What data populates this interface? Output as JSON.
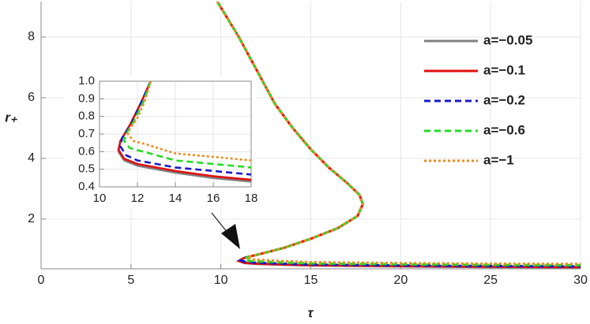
{
  "chart_data": [
    {
      "type": "line",
      "x_label": "τ",
      "y_label": "r₊",
      "xlim": [
        0,
        30
      ],
      "xticks": [
        0,
        5,
        10,
        15,
        20,
        25,
        30
      ],
      "ylim": [
        0.36,
        9.17
      ],
      "yticks": [
        2,
        4,
        6,
        8
      ],
      "grid": true,
      "legend": "upper right",
      "series": [
        {
          "name": "a=−0.05",
          "color": "#808080",
          "dash": "solid",
          "x": [
            9.8,
            11,
            12,
            13,
            14,
            15,
            16,
            17,
            17.7,
            17.9,
            17.6,
            16.5,
            15,
            13.5,
            12.2,
            11.3,
            11.0,
            11.3,
            12,
            15,
            20,
            25,
            30
          ],
          "values": [
            9.17,
            8.0,
            6.9,
            5.8,
            5.0,
            4.3,
            3.7,
            3.2,
            2.8,
            2.5,
            2.1,
            1.7,
            1.35,
            1.05,
            0.85,
            0.72,
            0.62,
            0.55,
            0.52,
            0.47,
            0.44,
            0.42,
            0.41
          ]
        },
        {
          "name": "a=−0.1",
          "color": "#e01010",
          "dash": "solid",
          "x": [
            9.8,
            11,
            12,
            13,
            14,
            15,
            16,
            17,
            17.7,
            17.9,
            17.6,
            16.5,
            15,
            13.5,
            12.2,
            11.3,
            11.0,
            11.3,
            12,
            15,
            20,
            25,
            30
          ],
          "values": [
            9.17,
            8.0,
            6.9,
            5.8,
            5.0,
            4.3,
            3.7,
            3.2,
            2.8,
            2.5,
            2.1,
            1.7,
            1.35,
            1.05,
            0.85,
            0.72,
            0.62,
            0.56,
            0.53,
            0.48,
            0.45,
            0.43,
            0.42
          ]
        },
        {
          "name": "a=−0.2",
          "color": "#1a1acc",
          "dash": "dashed",
          "x": [
            9.8,
            11,
            12,
            13,
            14,
            15,
            16,
            17,
            17.7,
            17.9,
            17.6,
            16.5,
            15,
            13.5,
            12.2,
            11.4,
            11.1,
            11.4,
            12,
            15,
            20,
            25,
            30
          ],
          "values": [
            9.17,
            8.0,
            6.9,
            5.8,
            5.0,
            4.3,
            3.7,
            3.2,
            2.8,
            2.5,
            2.1,
            1.7,
            1.35,
            1.05,
            0.85,
            0.73,
            0.64,
            0.58,
            0.56,
            0.5,
            0.47,
            0.45,
            0.44
          ]
        },
        {
          "name": "a=−0.6",
          "color": "#22dd22",
          "dash": "dashed",
          "x": [
            9.8,
            11,
            12,
            13,
            14,
            15,
            16,
            17,
            17.7,
            17.9,
            17.6,
            16.5,
            15,
            13.5,
            12.2,
            11.5,
            11.3,
            11.6,
            12.3,
            15,
            20,
            25,
            30
          ],
          "values": [
            9.17,
            8.0,
            6.9,
            5.8,
            5.0,
            4.3,
            3.7,
            3.2,
            2.8,
            2.5,
            2.1,
            1.7,
            1.35,
            1.05,
            0.85,
            0.75,
            0.68,
            0.62,
            0.6,
            0.54,
            0.51,
            0.49,
            0.48
          ]
        },
        {
          "name": "a=−1",
          "color": "#f08a1c",
          "dash": "dotted",
          "x": [
            9.8,
            11,
            12,
            13,
            14,
            15,
            16,
            17,
            17.7,
            17.9,
            17.6,
            16.5,
            15,
            13.5,
            12.2,
            11.7,
            11.5,
            11.8,
            12.5,
            15,
            20,
            25,
            30
          ],
          "values": [
            9.17,
            8.0,
            6.9,
            5.8,
            5.0,
            4.3,
            3.7,
            3.2,
            2.8,
            2.5,
            2.1,
            1.7,
            1.35,
            1.05,
            0.85,
            0.78,
            0.72,
            0.67,
            0.64,
            0.58,
            0.55,
            0.53,
            0.52
          ]
        }
      ]
    },
    {
      "type": "line",
      "xlim": [
        10,
        18
      ],
      "xticks": [
        10,
        12,
        14,
        16,
        18
      ],
      "ylim": [
        0.4,
        1.0
      ],
      "yticks": [
        0.4,
        0.5,
        0.6,
        0.7,
        0.8,
        0.9,
        {
          "value": 1.0,
          "label": "1.0"
        }
      ],
      "grid": true,
      "series": [
        {
          "color": "#808080",
          "dash": "solid",
          "x": [
            12.7,
            12.2,
            11.6,
            11.1,
            11.0,
            11.3,
            12,
            14,
            16,
            18
          ],
          "values": [
            1.0,
            0.88,
            0.75,
            0.66,
            0.6,
            0.55,
            0.52,
            0.48,
            0.45,
            0.43
          ]
        },
        {
          "color": "#e01010",
          "dash": "solid",
          "x": [
            12.7,
            12.2,
            11.6,
            11.1,
            11.0,
            11.3,
            12,
            14,
            16,
            18
          ],
          "values": [
            1.0,
            0.88,
            0.75,
            0.66,
            0.61,
            0.56,
            0.53,
            0.49,
            0.46,
            0.44
          ]
        },
        {
          "color": "#1a1acc",
          "dash": "dashed",
          "x": [
            12.7,
            12.2,
            11.7,
            11.2,
            11.1,
            11.4,
            12,
            14,
            16,
            18
          ],
          "values": [
            1.0,
            0.88,
            0.76,
            0.68,
            0.63,
            0.58,
            0.55,
            0.51,
            0.49,
            0.47
          ]
        },
        {
          "color": "#22dd22",
          "dash": "dashed",
          "x": [
            12.7,
            12.3,
            11.8,
            11.4,
            11.3,
            11.6,
            12.3,
            14,
            16,
            18
          ],
          "values": [
            1.0,
            0.88,
            0.77,
            0.7,
            0.66,
            0.62,
            0.6,
            0.55,
            0.53,
            0.51
          ]
        },
        {
          "color": "#f08a1c",
          "dash": "dotted",
          "x": [
            12.7,
            12.4,
            12.0,
            11.6,
            11.5,
            11.8,
            12.5,
            14,
            16,
            18
          ],
          "values": [
            1.0,
            0.89,
            0.79,
            0.73,
            0.7,
            0.66,
            0.64,
            0.59,
            0.57,
            0.55
          ]
        }
      ]
    }
  ]
}
